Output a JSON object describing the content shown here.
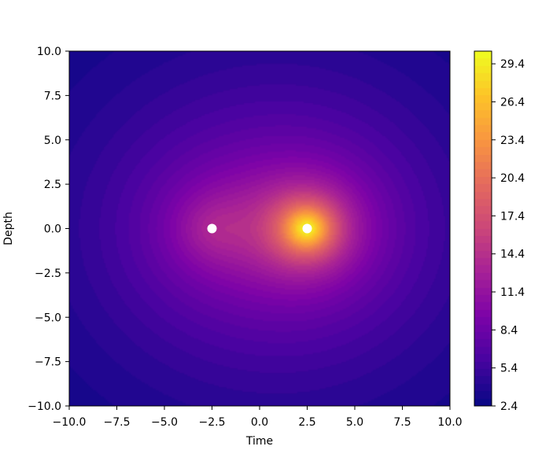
{
  "chart_data": {
    "type": "heatmap",
    "title": "",
    "xlabel": "Time",
    "ylabel": "Depth",
    "xlim": [
      -10.0,
      10.0
    ],
    "ylim": [
      -10.0,
      10.0
    ],
    "x_ticks": [
      "−10.0",
      "−7.5",
      "−5.0",
      "−2.5",
      "0.0",
      "2.5",
      "5.0",
      "7.5",
      "10.0"
    ],
    "x_tick_values": [
      -10,
      -7.5,
      -5,
      -2.5,
      0,
      2.5,
      5,
      7.5,
      10
    ],
    "y_ticks": [
      "−10.0",
      "−7.5",
      "−5.0",
      "−2.5",
      "0.0",
      "2.5",
      "5.0",
      "7.5",
      "10.0"
    ],
    "y_tick_values": [
      -10,
      -7.5,
      -5,
      -2.5,
      0,
      2.5,
      5,
      7.5,
      10
    ],
    "colormap": "plasma",
    "colorbar": {
      "range": [
        2.4,
        30.4
      ],
      "ticks": [
        "2.4",
        "5.4",
        "8.4",
        "11.4",
        "14.4",
        "17.4",
        "20.4",
        "23.4",
        "26.4",
        "29.4"
      ],
      "tick_values": [
        2.4,
        5.4,
        8.4,
        11.4,
        14.4,
        17.4,
        20.4,
        23.4,
        26.4,
        29.4
      ]
    },
    "grid": false,
    "sources": [
      {
        "x": -2.5,
        "y": 0.0
      },
      {
        "x": 2.5,
        "y": 0.0
      }
    ],
    "marker_color": "#ffffff"
  }
}
